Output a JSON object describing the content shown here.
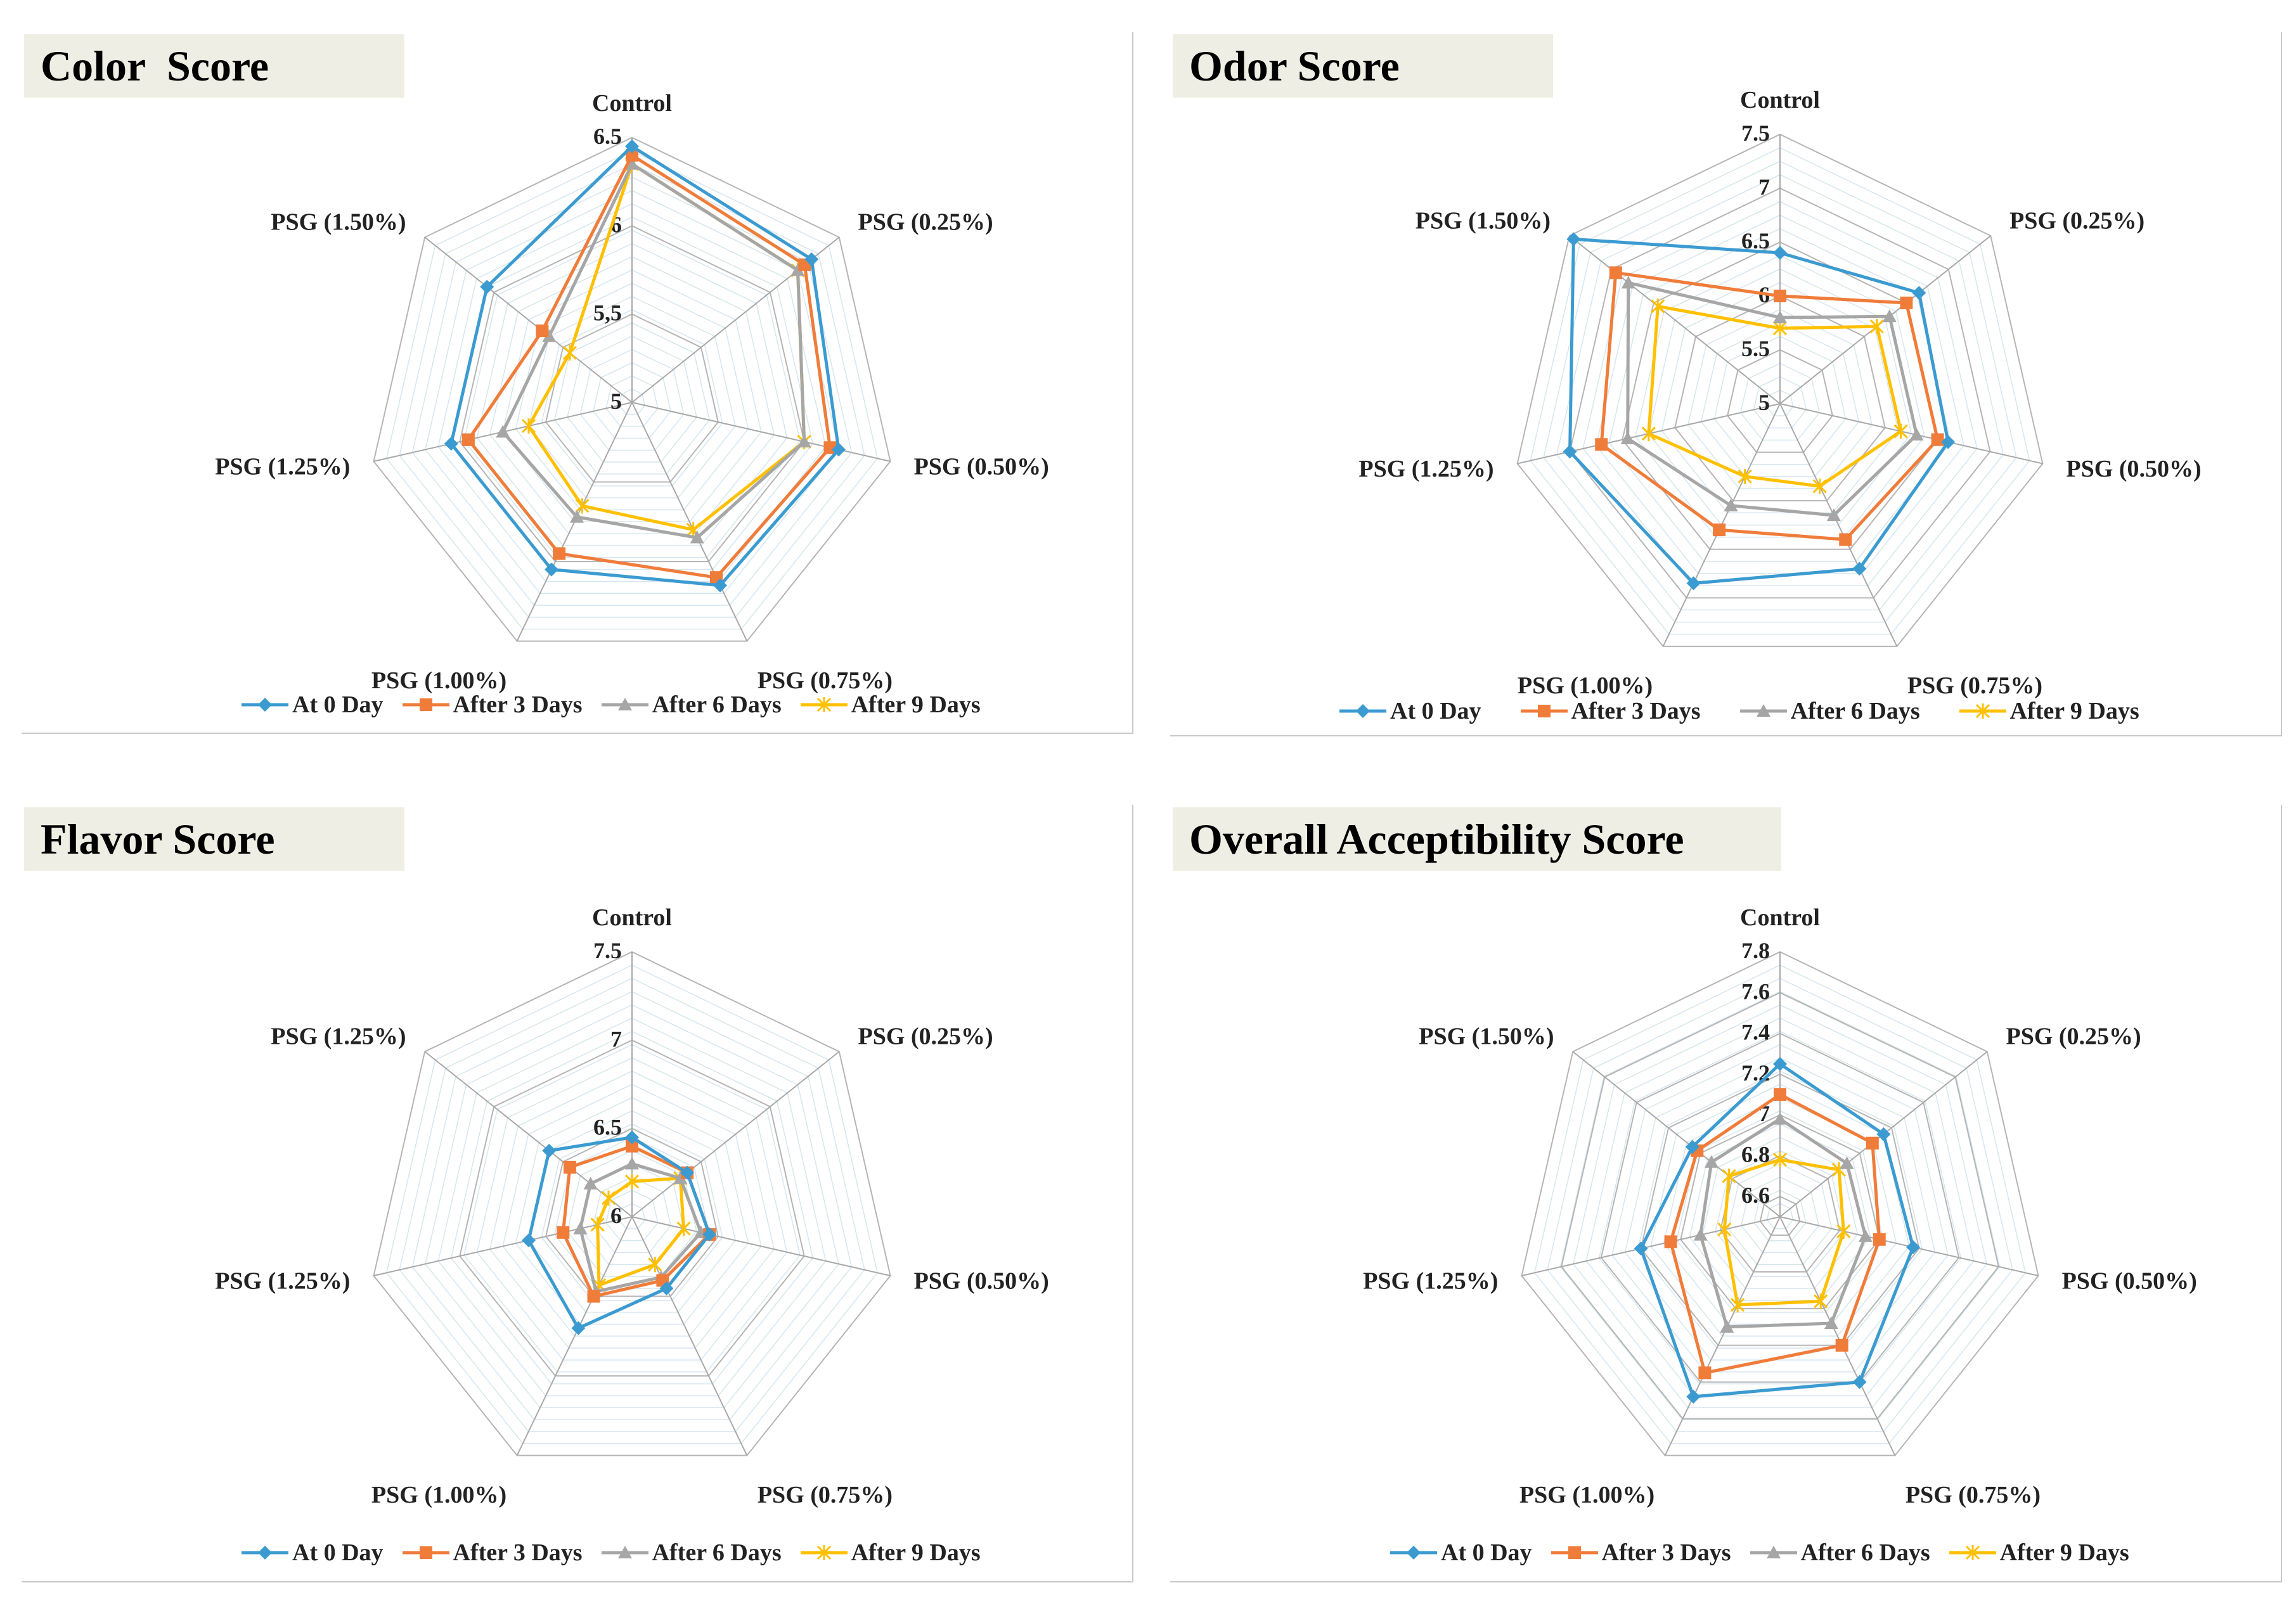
{
  "legend_colors": [
    "#3b9bd1",
    "#f07c3a",
    "#a6a6a6",
    "#ffc000"
  ],
  "chart_data": [
    {
      "type": "radar",
      "title": "Color  Score",
      "axes": [
        "Control",
        "PSG (0.25%)",
        "PSG (0.50%)",
        "PSG (0.75%)",
        "PSG (1.00%)",
        "PSG (1.25%)",
        "PSG (1.50%)"
      ],
      "rlim": [
        5,
        6.5
      ],
      "ticks": [
        5,
        5.5,
        6,
        6.5
      ],
      "tick_labels": [
        "5",
        "5,5",
        "6",
        "6.5"
      ],
      "series": [
        {
          "name": "At 0 Day",
          "values": [
            6.45,
            6.3,
            6.2,
            6.15,
            6.05,
            6.05,
            6.05
          ]
        },
        {
          "name": "After 3 Days",
          "values": [
            6.4,
            6.25,
            6.15,
            6.1,
            5.95,
            5.95,
            5.65
          ]
        },
        {
          "name": "After 6 Days",
          "values": [
            6.35,
            6.2,
            6.0,
            5.85,
            5.72,
            5.75,
            5.6
          ]
        },
        {
          "name": "After 9 Days",
          "values": [
            6.35,
            6.2,
            6.0,
            5.8,
            5.65,
            5.6,
            5.45
          ]
        }
      ]
    },
    {
      "type": "radar",
      "title": "Odor Score",
      "axes": [
        "Control",
        "PSG (0.25%)",
        "PSG (0.50%)",
        "PSG (0.75%)",
        "PSG (1.00%)",
        "PSG (1.25%)",
        "PSG (1.50%)"
      ],
      "rlim": [
        5,
        7.5
      ],
      "ticks": [
        5,
        5.5,
        6,
        6.5,
        7,
        7.5
      ],
      "tick_labels": [
        "5",
        "5.5",
        "6",
        "6.5",
        "7",
        "7.5"
      ],
      "series": [
        {
          "name": "At 0 Day",
          "values": [
            6.4,
            6.65,
            6.6,
            6.7,
            6.85,
            7.0,
            7.45
          ]
        },
        {
          "name": "After 3 Days",
          "values": [
            6.0,
            6.5,
            6.5,
            6.4,
            6.3,
            6.7,
            6.95
          ]
        },
        {
          "name": "After 6 Days",
          "values": [
            5.8,
            6.3,
            6.3,
            6.15,
            6.05,
            6.45,
            6.8
          ]
        },
        {
          "name": "After 9 Days",
          "values": [
            5.7,
            6.15,
            6.15,
            5.85,
            5.75,
            6.25,
            6.45
          ]
        }
      ]
    },
    {
      "type": "radar",
      "title": "Flavor Score",
      "axes": [
        "Control",
        "PSG (0.25%)",
        "PSG (0.50%)",
        "PSG (0.75%)",
        "PSG (1.00%)",
        "PSG (1.25%)",
        "PSG (1.25%)"
      ],
      "rlim": [
        6,
        7.5
      ],
      "ticks": [
        6,
        6.5,
        7,
        7.5
      ],
      "tick_labels": [
        "6",
        "6.5",
        "7",
        "7.5"
      ],
      "series": [
        {
          "name": "At 0 Day",
          "values": [
            6.45,
            6.4,
            6.45,
            6.45,
            6.7,
            6.6,
            6.6
          ]
        },
        {
          "name": "After 3 Days",
          "values": [
            6.4,
            6.4,
            6.45,
            6.4,
            6.5,
            6.4,
            6.45
          ]
        },
        {
          "name": "After 6 Days",
          "values": [
            6.3,
            6.35,
            6.4,
            6.38,
            6.47,
            6.3,
            6.3
          ]
        },
        {
          "name": "After 9 Days",
          "values": [
            6.2,
            6.35,
            6.3,
            6.3,
            6.43,
            6.2,
            6.17
          ]
        }
      ]
    },
    {
      "type": "radar",
      "title": "Overall Acceptibility Score",
      "axes": [
        "Control",
        "PSG (0.25%)",
        "PSG (0.50%)",
        "PSG (0.75%)",
        "PSG (1.00%)",
        "PSG (1.25%)",
        "PSG (1.50%)"
      ],
      "rlim": [
        6.5,
        7.8
      ],
      "ticks": [
        6.6,
        6.8,
        7,
        7.2,
        7.4,
        7.6,
        7.8
      ],
      "tick_labels": [
        "6.6",
        "6.8",
        "7",
        "7.2",
        "7.4",
        "7.6",
        "7.8"
      ],
      "series": [
        {
          "name": "At 0 Day",
          "values": [
            7.25,
            7.15,
            7.17,
            7.4,
            7.48,
            7.2,
            7.05
          ]
        },
        {
          "name": "After 3 Days",
          "values": [
            7.1,
            7.08,
            7.0,
            7.2,
            7.35,
            7.05,
            7.02
          ]
        },
        {
          "name": "After 6 Days",
          "values": [
            6.98,
            6.92,
            6.93,
            7.08,
            7.1,
            6.9,
            6.93
          ]
        },
        {
          "name": "After 9 Days",
          "values": [
            6.78,
            6.87,
            6.82,
            6.96,
            6.98,
            6.78,
            6.82
          ]
        }
      ]
    }
  ]
}
